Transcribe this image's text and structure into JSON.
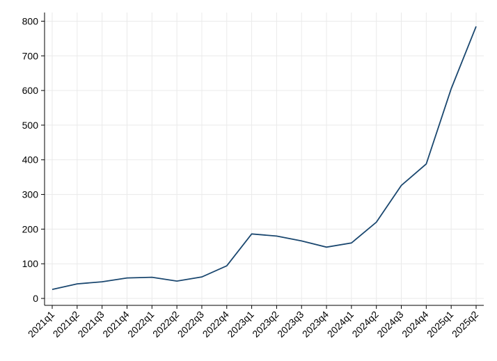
{
  "chart_data": {
    "type": "line",
    "categories": [
      "2021q1",
      "2021q2",
      "2021q3",
      "2021q4",
      "2022q1",
      "2022q2",
      "2022q3",
      "2022q4",
      "2023q1",
      "2023q2",
      "2023q3",
      "2023q4",
      "2024q1",
      "2024q2",
      "2024q3",
      "2024q4",
      "2025q1",
      "2025q2"
    ],
    "series": [
      {
        "color": "#1a476f",
        "values": [
          26,
          42,
          48,
          59,
          61,
          50,
          62,
          94,
          186,
          180,
          166,
          148,
          160,
          220,
          326,
          388,
          605,
          785
        ]
      }
    ],
    "ylim": [
      -20,
      825
    ],
    "yticks": [
      0,
      100,
      200,
      300,
      400,
      500,
      600,
      700,
      800
    ],
    "grid": true
  }
}
